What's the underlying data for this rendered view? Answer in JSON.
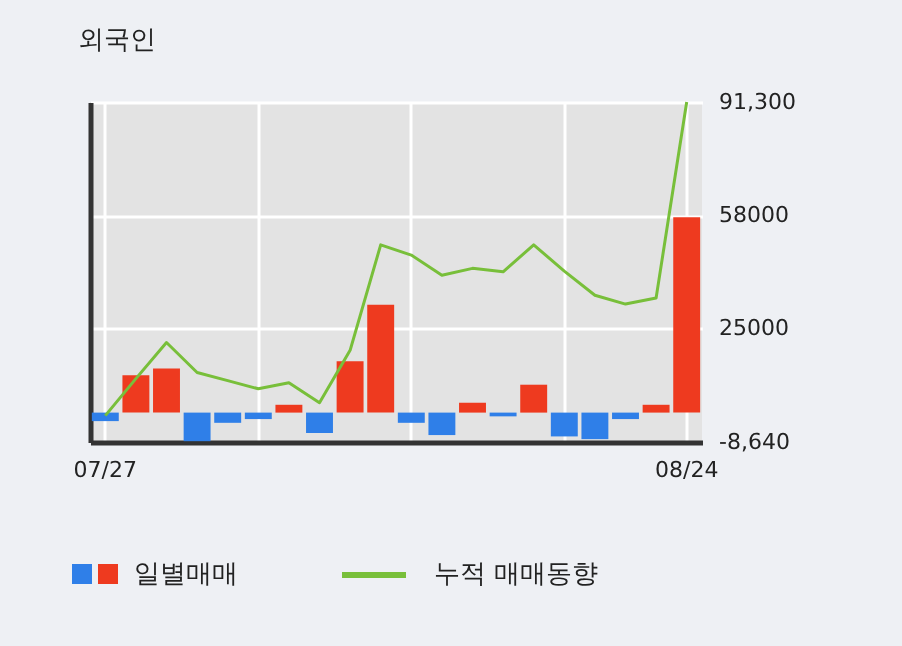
{
  "chart_data": {
    "type": "bar",
    "title": "외국인",
    "categories": [
      "07/27",
      null,
      null,
      null,
      null,
      null,
      null,
      null,
      null,
      null,
      null,
      null,
      null,
      null,
      null,
      null,
      null,
      null,
      null,
      "08/24"
    ],
    "series": [
      {
        "name": "일별매매",
        "colors": [
          "#2f7fe8",
          "#ee3a1f",
          "#ee3a1f",
          "#2f7fe8",
          "#2f7fe8",
          "#2f7fe8",
          "#ee3a1f",
          "#2f7fe8",
          "#ee3a1f",
          "#ee3a1f",
          "#2f7fe8",
          "#2f7fe8",
          "#ee3a1f",
          "#2f7fe8",
          "#ee3a1f",
          "#2f7fe8",
          "#2f7fe8",
          "#2f7fe8",
          "#ee3a1f",
          "#ee3a1f"
        ],
        "values": [
          -2500,
          11000,
          13000,
          -8400,
          -3000,
          -1900,
          2300,
          -6000,
          15100,
          31700,
          -3000,
          -6600,
          2900,
          -1100,
          8200,
          -7000,
          -7800,
          -1900,
          2300,
          57400
        ]
      },
      {
        "name": "누적 매매동향",
        "type": "line",
        "color": "#78bf3a",
        "values": [
          -900,
          10000,
          20600,
          11800,
          9400,
          7000,
          8800,
          2900,
          18300,
          49300,
          46300,
          40400,
          42400,
          41400,
          49300,
          41600,
          34500,
          31900,
          33700,
          91300
        ]
      }
    ],
    "ylim": [
      -8640,
      91300
    ],
    "yticks": [
      {
        "value": 91300,
        "label": "91,300"
      },
      58000,
      25000,
      {
        "value": -8640,
        "label": "-8,640"
      }
    ],
    "grid": true,
    "legend": "bottom"
  }
}
